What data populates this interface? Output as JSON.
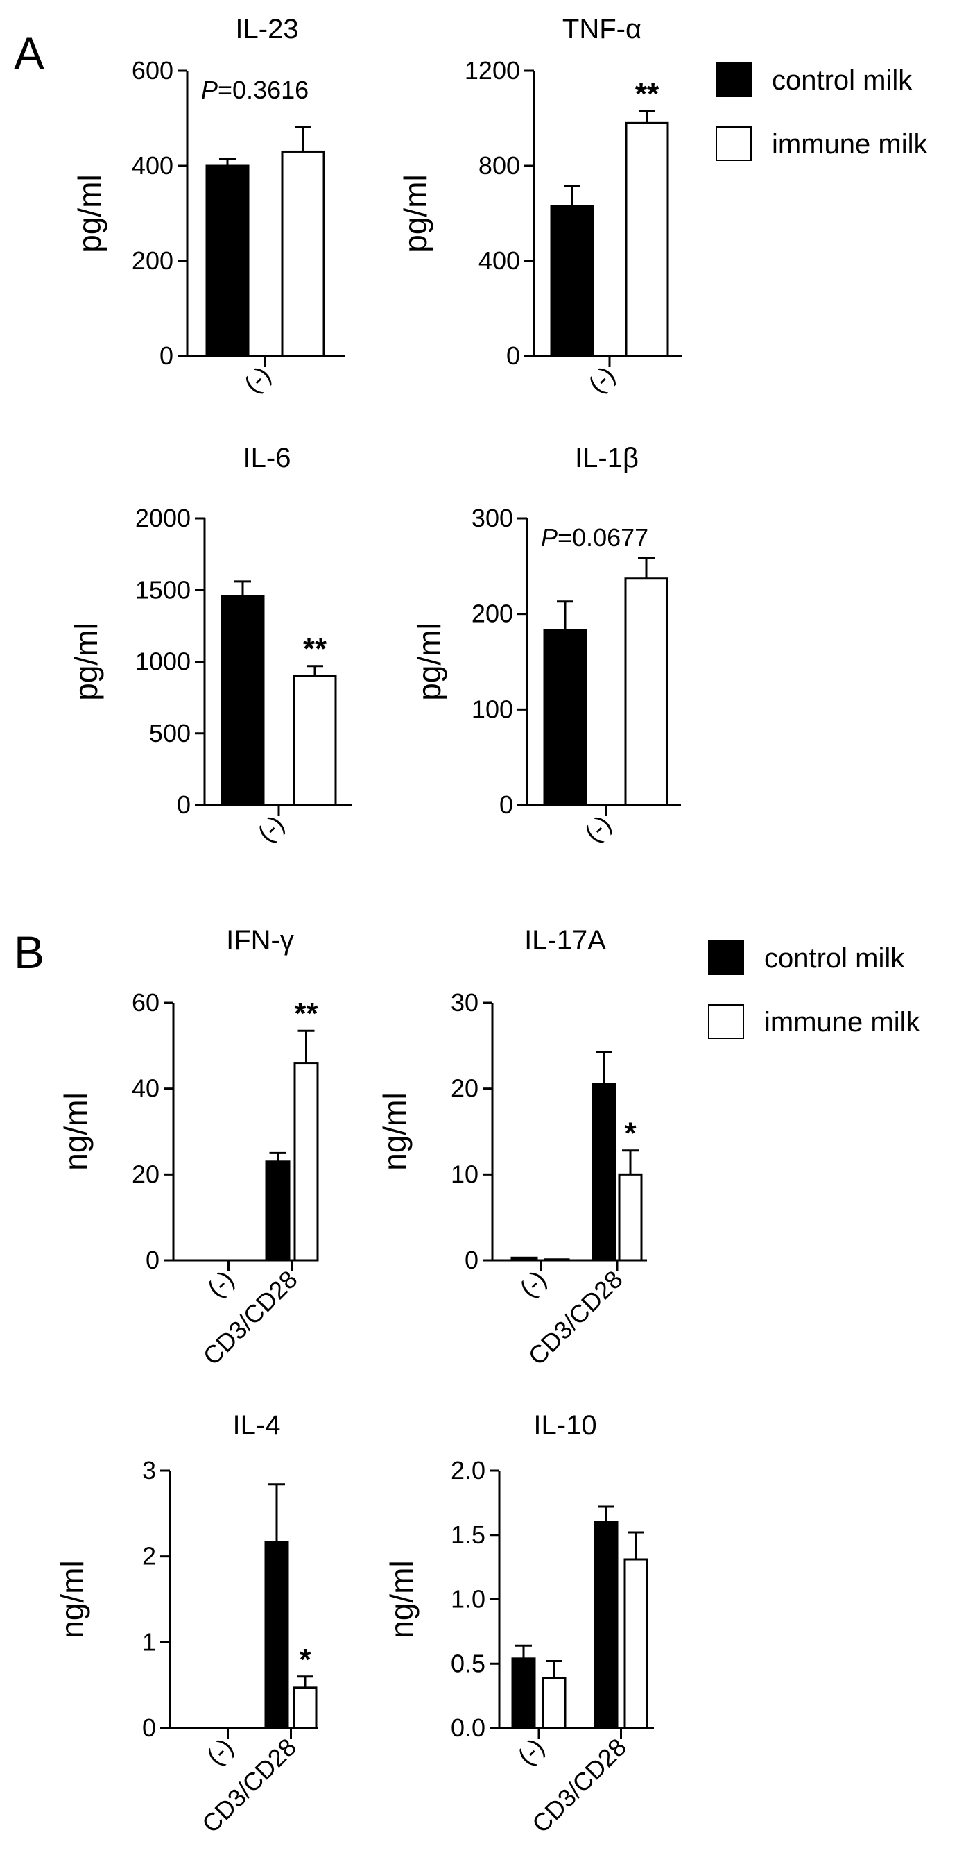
{
  "panels": [
    {
      "letter": "A",
      "legend": {
        "items": [
          {
            "label": "control milk",
            "color": "#000000"
          },
          {
            "label": "immune milk",
            "color": "#ffffff"
          }
        ]
      }
    },
    {
      "letter": "B",
      "legend": {
        "items": [
          {
            "label": "control milk",
            "color": "#000000"
          },
          {
            "label": "immune milk",
            "color": "#ffffff"
          }
        ]
      }
    }
  ],
  "chart_data": [
    {
      "type": "bar",
      "title": "IL-23",
      "ylabel": "pg/ml",
      "ylim": [
        0,
        600
      ],
      "yticks": [
        "0",
        "200",
        "400",
        "600"
      ],
      "categories": [
        "(-)"
      ],
      "series": [
        {
          "name": "control milk",
          "values": [
            400
          ],
          "errors": [
            15
          ],
          "marks": [
            ""
          ]
        },
        {
          "name": "immune milk",
          "values": [
            430
          ],
          "errors": [
            52
          ],
          "marks": [
            ""
          ]
        }
      ],
      "annotation": {
        "italic": "P",
        "text": "=0.3616"
      }
    },
    {
      "type": "bar",
      "title": "TNF-α",
      "ylabel": "pg/ml",
      "ylim": [
        0,
        1200
      ],
      "yticks": [
        "0",
        "400",
        "800",
        "1200"
      ],
      "categories": [
        "(-)"
      ],
      "series": [
        {
          "name": "control milk",
          "values": [
            630
          ],
          "errors": [
            85
          ],
          "marks": [
            ""
          ]
        },
        {
          "name": "immune milk",
          "values": [
            980
          ],
          "errors": [
            50
          ],
          "marks": [
            "**"
          ]
        }
      ]
    },
    {
      "type": "bar",
      "title": "IL-6",
      "ylabel": "pg/ml",
      "ylim": [
        0,
        2000
      ],
      "yticks": [
        "0",
        "500",
        "1000",
        "1500",
        "2000"
      ],
      "categories": [
        "(-)"
      ],
      "series": [
        {
          "name": "control milk",
          "values": [
            1460
          ],
          "errors": [
            100
          ],
          "marks": [
            ""
          ]
        },
        {
          "name": "immune milk",
          "values": [
            900
          ],
          "errors": [
            70
          ],
          "marks": [
            "**"
          ]
        }
      ]
    },
    {
      "type": "bar",
      "title": "IL-1β",
      "ylabel": "pg/ml",
      "ylim": [
        0,
        300
      ],
      "yticks": [
        "0",
        "100",
        "200",
        "300"
      ],
      "categories": [
        "(-)"
      ],
      "series": [
        {
          "name": "control milk",
          "values": [
            183
          ],
          "errors": [
            30
          ],
          "marks": [
            ""
          ]
        },
        {
          "name": "immune milk",
          "values": [
            237
          ],
          "errors": [
            22
          ],
          "marks": [
            ""
          ]
        }
      ],
      "annotation": {
        "italic": "P",
        "text": "=0.0677"
      }
    },
    {
      "type": "bar",
      "title": "IFN-γ",
      "ylabel": "ng/ml",
      "ylim": [
        0,
        60
      ],
      "yticks": [
        "0",
        "20",
        "40",
        "60"
      ],
      "categories": [
        "(-)",
        "CD3/CD28"
      ],
      "series": [
        {
          "name": "control milk",
          "values": [
            0,
            23
          ],
          "errors": [
            0,
            2
          ],
          "marks": [
            "",
            ""
          ]
        },
        {
          "name": "immune milk",
          "values": [
            0,
            46
          ],
          "errors": [
            0,
            7.5
          ],
          "marks": [
            "",
            "**"
          ]
        }
      ]
    },
    {
      "type": "bar",
      "title": "IL-17A",
      "ylabel": "ng/ml",
      "ylim": [
        0,
        30
      ],
      "yticks": [
        "0",
        "10",
        "20",
        "30"
      ],
      "categories": [
        "(-)",
        "CD3/CD28"
      ],
      "series": [
        {
          "name": "control milk",
          "values": [
            0.3,
            20.5
          ],
          "errors": [
            0,
            3.8
          ],
          "marks": [
            "",
            ""
          ]
        },
        {
          "name": "immune milk",
          "values": [
            0.1,
            10
          ],
          "errors": [
            0,
            2.8
          ],
          "marks": [
            "",
            "*"
          ]
        }
      ]
    },
    {
      "type": "bar",
      "title": "IL-4",
      "ylabel": "ng/ml",
      "ylim": [
        0,
        3
      ],
      "yticks": [
        "0",
        "1",
        "2",
        "3"
      ],
      "categories": [
        "(-)",
        "CD3/CD28"
      ],
      "series": [
        {
          "name": "control milk",
          "values": [
            0,
            2.17
          ],
          "errors": [
            0,
            0.67
          ],
          "marks": [
            "",
            ""
          ]
        },
        {
          "name": "immune milk",
          "values": [
            0,
            0.47
          ],
          "errors": [
            0,
            0.13
          ],
          "marks": [
            "",
            "*"
          ]
        }
      ]
    },
    {
      "type": "bar",
      "title": "IL-10",
      "ylabel": "ng/ml",
      "ylim": [
        0,
        2
      ],
      "yticks": [
        "0.0",
        "0.5",
        "1.0",
        "1.5",
        "2.0"
      ],
      "categories": [
        "(-)",
        "CD3/CD28"
      ],
      "series": [
        {
          "name": "control milk",
          "values": [
            0.54,
            1.6
          ],
          "errors": [
            0.1,
            0.12
          ],
          "marks": [
            "",
            ""
          ]
        },
        {
          "name": "immune milk",
          "values": [
            0.39,
            1.31
          ],
          "errors": [
            0.13,
            0.21
          ],
          "marks": [
            "",
            ""
          ]
        }
      ]
    }
  ]
}
